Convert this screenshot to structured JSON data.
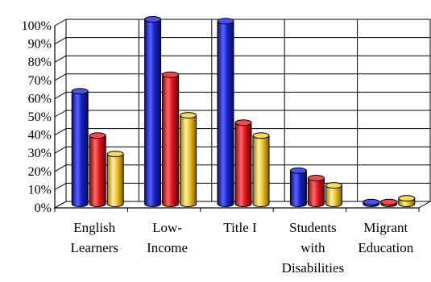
{
  "chart_data": {
    "type": "bar",
    "title": "",
    "xlabel": "",
    "ylabel": "",
    "categories": [
      [
        "English",
        "Learners"
      ],
      [
        "Low-",
        "Income"
      ],
      [
        "Title I"
      ],
      [
        "Students",
        "with",
        "Disabilities"
      ],
      [
        "Migrant",
        "Education"
      ]
    ],
    "yticks": [
      "0%",
      "10%",
      "20%",
      "30%",
      "40%",
      "50%",
      "60%",
      "70%",
      "80%",
      "90%",
      "100%"
    ],
    "ylim": [
      0,
      100
    ],
    "grid": true,
    "legend": "none",
    "style": "3d-cylinder",
    "series": [
      {
        "color": "#1c22c4",
        "values": [
          61,
          100,
          99,
          18,
          1
        ]
      },
      {
        "color": "#e0191e",
        "values": [
          37,
          70,
          44,
          14,
          1
        ]
      },
      {
        "color": "#f0c22e",
        "values": [
          27,
          48,
          37,
          10,
          3
        ]
      }
    ]
  }
}
